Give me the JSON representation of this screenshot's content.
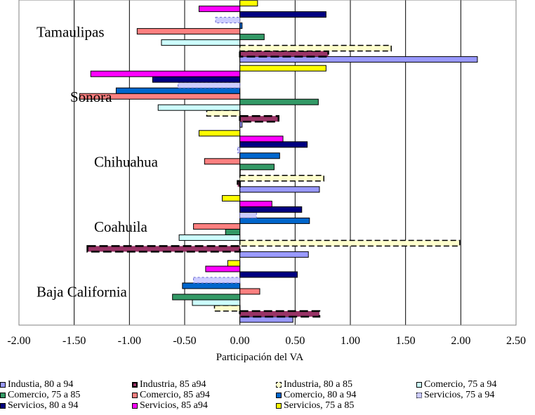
{
  "chart_data": {
    "type": "bar",
    "orientation": "horizontal",
    "xlabel": "Participación del VA",
    "xlim": [
      -2.0,
      2.5
    ],
    "xticks": [
      "-2.00",
      "-1.50",
      "-1.00",
      "-0.50",
      "0.00",
      "0.50",
      "1.00",
      "1.50",
      "2.00",
      "2.50"
    ],
    "grid": true,
    "legend_position": "bottom",
    "categories": [
      "Baja California",
      "Coahuila",
      "Chihuahua",
      "Sonora",
      "Tamaulipas"
    ],
    "series": [
      {
        "name": "Industia, 80 a 94",
        "color": "#9999ff",
        "style": "solid",
        "values": [
          0.48,
          0.62,
          0.72,
          0.02,
          2.15
        ]
      },
      {
        "name": "Industria, 85 a94",
        "color": "#993366",
        "style": "dashed-dark",
        "values": [
          0.72,
          -1.38,
          -0.02,
          0.35,
          0.8
        ]
      },
      {
        "name": "Industria, 80 a 85",
        "color": "#ffffcc",
        "style": "dashed",
        "values": [
          -0.23,
          1.99,
          0.76,
          -0.3,
          1.37
        ]
      },
      {
        "name": "Comercio, 75 a 94",
        "color": "#ccffff",
        "style": "solid",
        "values": [
          -0.43,
          -0.55,
          0.0,
          -0.74,
          -0.71
        ]
      },
      {
        "name": "Comercio, 75 a 85",
        "color": "#339966",
        "style": "solid",
        "values": [
          -0.61,
          -0.13,
          0.31,
          0.71,
          0.22
        ]
      },
      {
        "name": "Comercio, 85 a94",
        "color": "#ff8080",
        "style": "solid",
        "values": [
          0.18,
          -0.42,
          -0.32,
          -1.45,
          -0.93
        ]
      },
      {
        "name": "Comercio, 80 a 94",
        "color": "#0066cc",
        "style": "solid",
        "values": [
          -0.52,
          0.63,
          0.36,
          -1.12,
          0.02
        ]
      },
      {
        "name": "Servicios, 75 a 94",
        "color": "#ccccff",
        "style": "dotted",
        "values": [
          -0.42,
          0.15,
          -0.02,
          -0.56,
          -0.22
        ]
      },
      {
        "name": "Servicios, 80 a 94",
        "color": "#000080",
        "style": "solid",
        "values": [
          0.52,
          0.56,
          0.61,
          -0.79,
          0.78
        ]
      },
      {
        "name": "Servicios, 85 a94",
        "color": "#ff00ff",
        "style": "solid",
        "values": [
          -0.31,
          0.29,
          0.39,
          -1.35,
          -0.37
        ]
      },
      {
        "name": "Servicios, 75 a 85",
        "color": "#ffff00",
        "style": "solid",
        "values": [
          -0.11,
          -0.16,
          -0.37,
          0.78,
          0.16
        ]
      }
    ]
  }
}
